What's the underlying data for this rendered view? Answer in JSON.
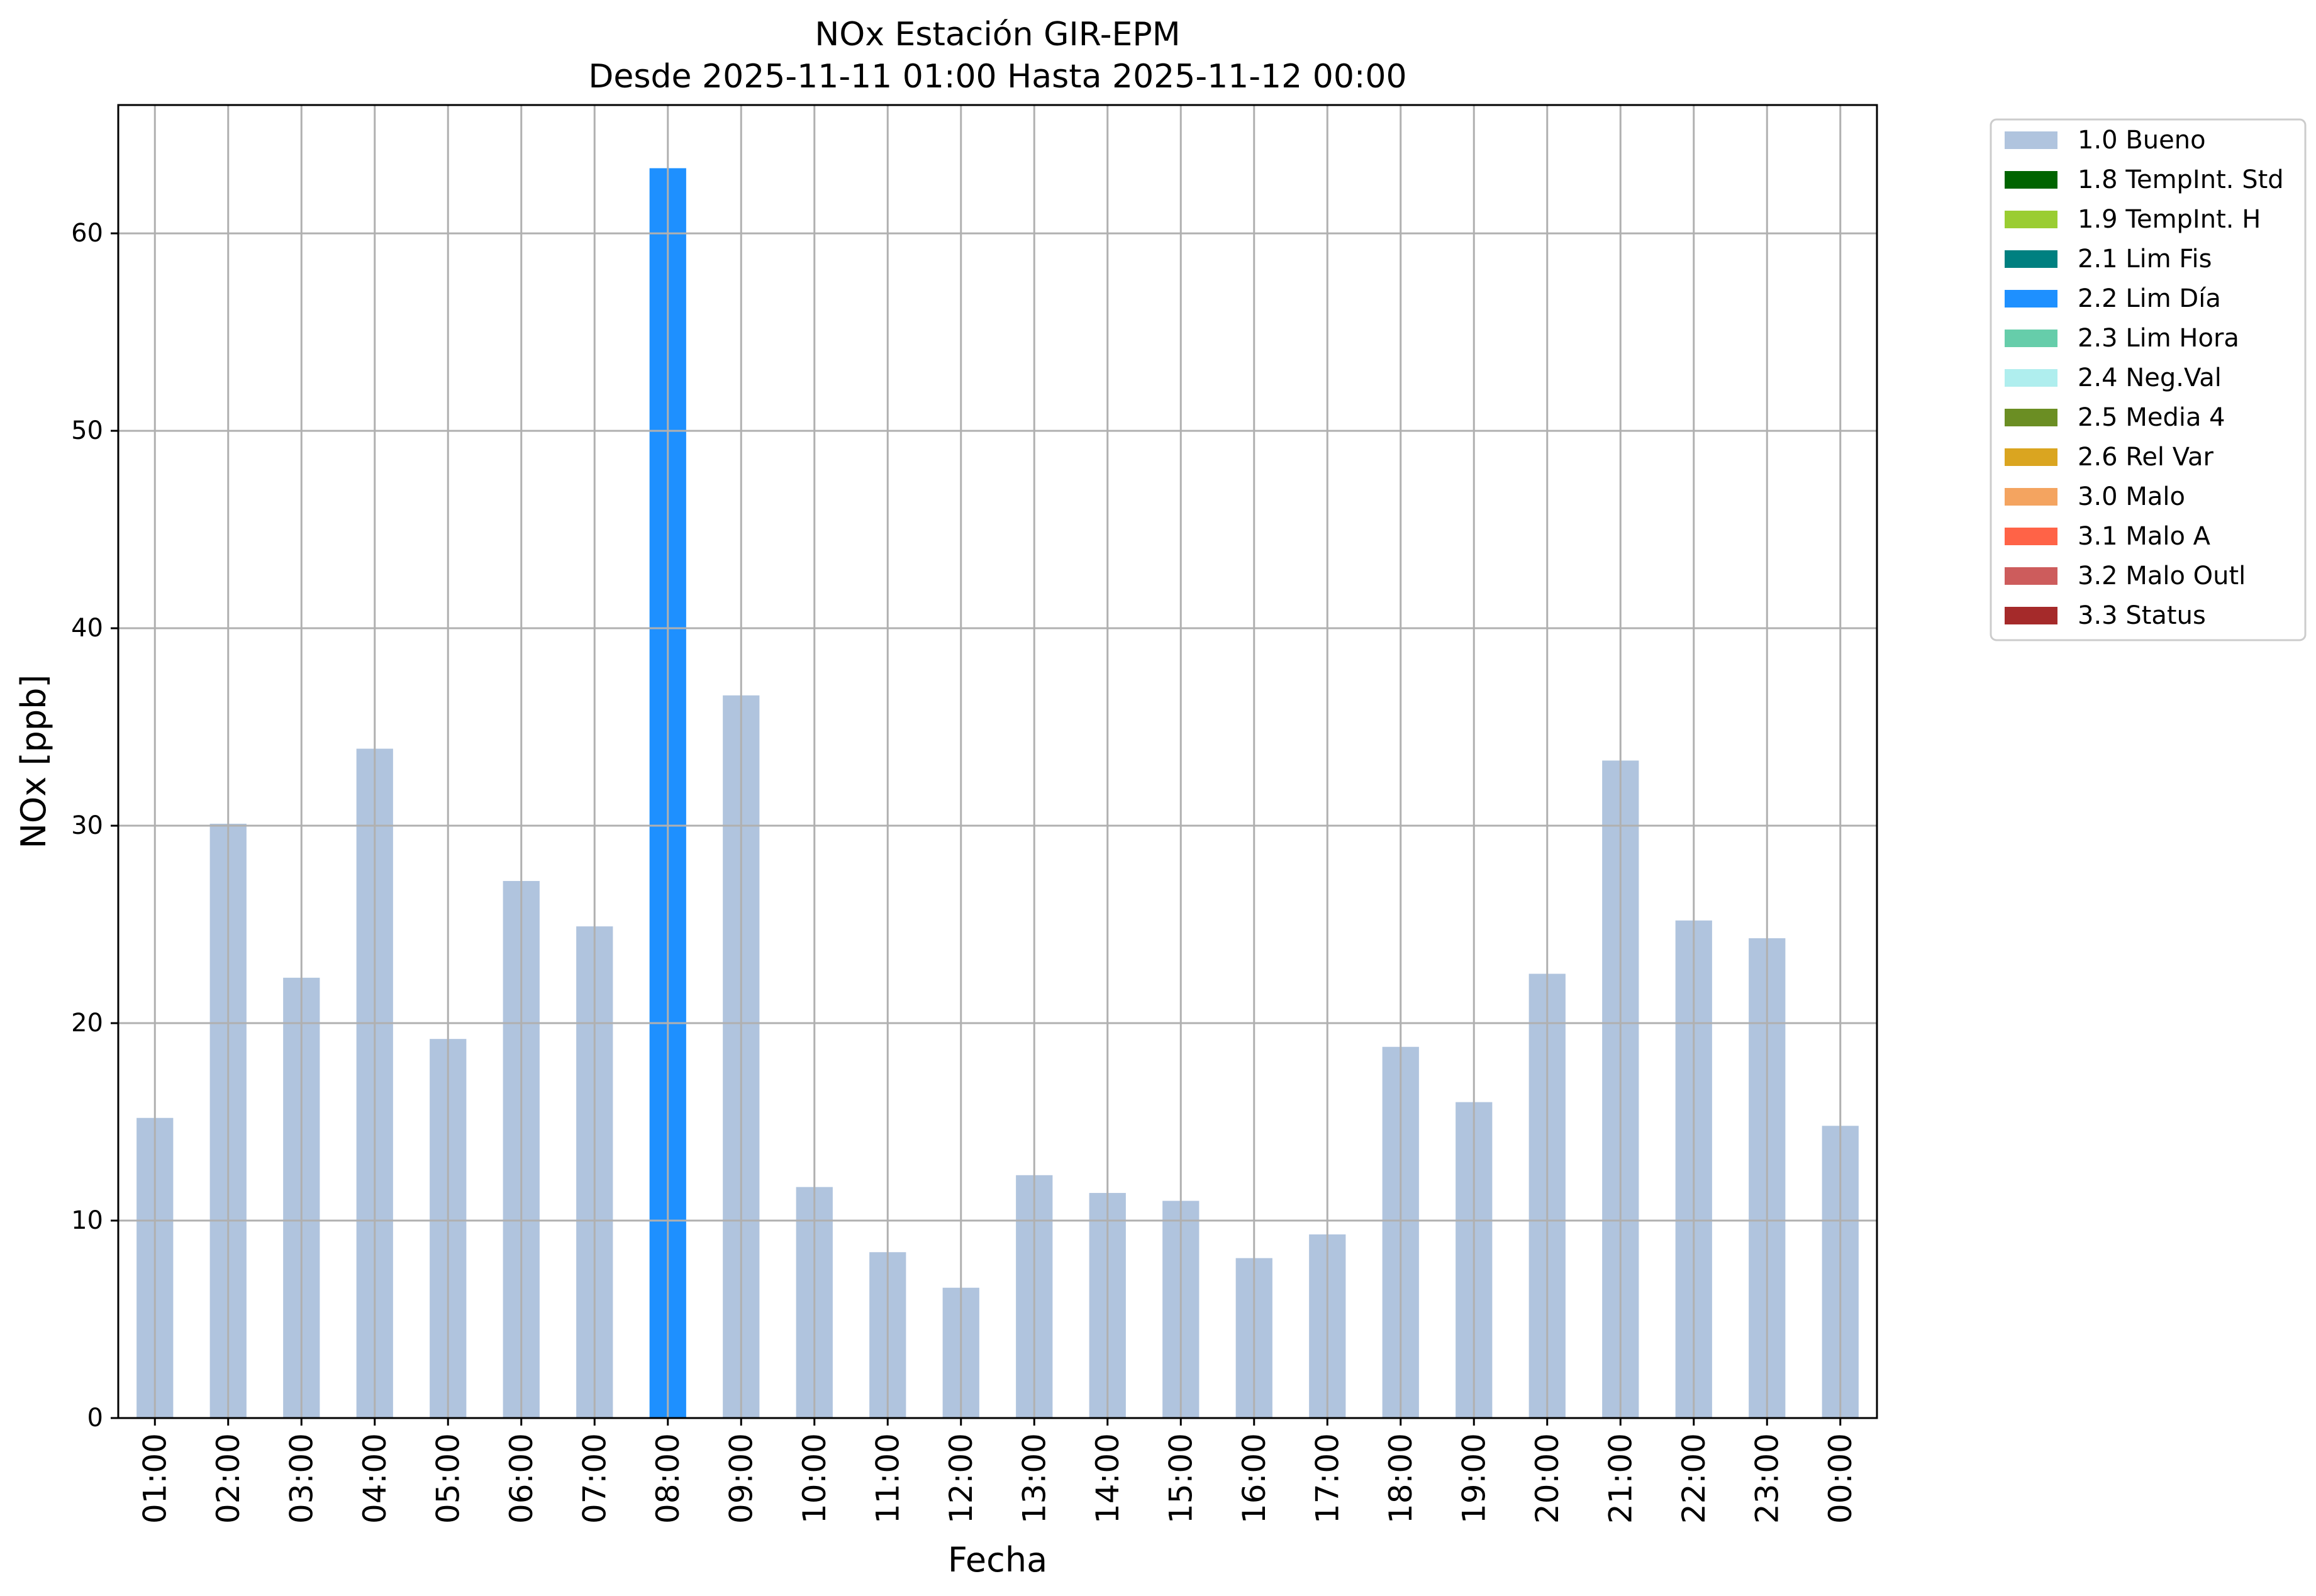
{
  "chart_data": {
    "type": "bar",
    "title": "NOx Estación GIR-EPM",
    "subtitle": "Desde 2025-11-11 01:00 Hasta 2025-11-12 00:00",
    "xlabel": "Fecha",
    "ylabel": "NOx [ppb]",
    "ylim": [
      0,
      66.5
    ],
    "yticks": [
      0,
      10,
      20,
      30,
      40,
      50,
      60
    ],
    "grid": true,
    "legend_position": "outside-right-top",
    "categories": [
      "01:00",
      "02:00",
      "03:00",
      "04:00",
      "05:00",
      "06:00",
      "07:00",
      "08:00",
      "09:00",
      "10:00",
      "11:00",
      "12:00",
      "13:00",
      "14:00",
      "15:00",
      "16:00",
      "17:00",
      "18:00",
      "19:00",
      "20:00",
      "21:00",
      "22:00",
      "23:00",
      "00:00"
    ],
    "values": [
      15.2,
      30.1,
      22.3,
      33.9,
      19.2,
      27.2,
      24.9,
      63.3,
      36.6,
      11.7,
      8.4,
      6.6,
      12.3,
      11.4,
      11.0,
      8.1,
      9.3,
      18.8,
      16.0,
      22.5,
      33.3,
      25.2,
      24.3,
      14.8
    ],
    "flags": [
      "1.0 Bueno",
      "1.0 Bueno",
      "1.0 Bueno",
      "1.0 Bueno",
      "1.0 Bueno",
      "1.0 Bueno",
      "1.0 Bueno",
      "2.2 Lim Día",
      "1.0 Bueno",
      "1.0 Bueno",
      "1.0 Bueno",
      "1.0 Bueno",
      "1.0 Bueno",
      "1.0 Bueno",
      "1.0 Bueno",
      "1.0 Bueno",
      "1.0 Bueno",
      "1.0 Bueno",
      "1.0 Bueno",
      "1.0 Bueno",
      "1.0 Bueno",
      "1.0 Bueno",
      "1.0 Bueno",
      "1.0 Bueno"
    ],
    "legend": [
      {
        "label": "1.0 Bueno",
        "color": "#b0c4de"
      },
      {
        "label": "1.8 TempInt. Std",
        "color": "#006400"
      },
      {
        "label": "1.9 TempInt. H",
        "color": "#9acd32"
      },
      {
        "label": "2.1 Lim Fis",
        "color": "#008080"
      },
      {
        "label": "2.2 Lim Día",
        "color": "#1e90ff"
      },
      {
        "label": "2.3 Lim Hora",
        "color": "#66cdaa"
      },
      {
        "label": "2.4 Neg.Val",
        "color": "#afeeee"
      },
      {
        "label": "2.5 Media 4",
        "color": "#6b8e23"
      },
      {
        "label": "2.6 Rel Var",
        "color": "#daa520"
      },
      {
        "label": "3.0 Malo",
        "color": "#f4a460"
      },
      {
        "label": "3.1 Malo A",
        "color": "#ff6347"
      },
      {
        "label": "3.2 Malo Outl",
        "color": "#cd5c5c"
      },
      {
        "label": "3.3 Status",
        "color": "#a52a2a"
      }
    ]
  }
}
